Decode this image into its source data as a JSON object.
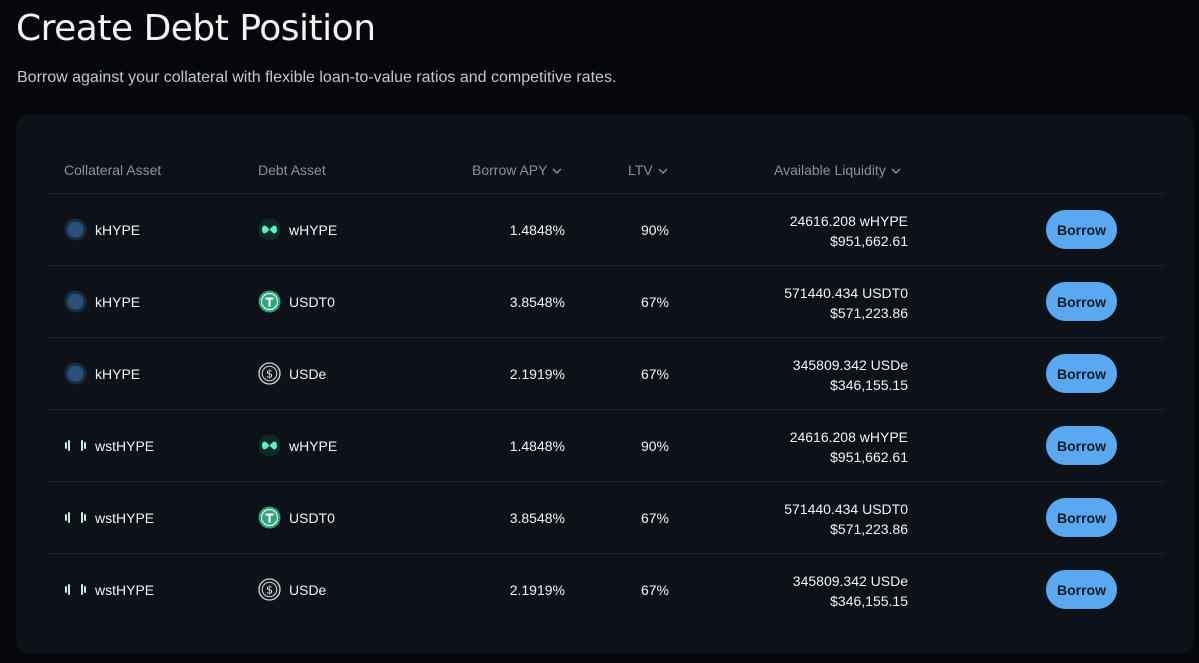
{
  "page": {
    "title": "Create Debt Position",
    "subtitle": "Borrow against your collateral with flexible loan-to-value ratios and competitive rates."
  },
  "table": {
    "headers": {
      "collateral": "Collateral Asset",
      "debt": "Debt Asset",
      "apy": "Borrow APY",
      "ltv": "LTV",
      "liquidity": "Available Liquidity"
    },
    "rows": [
      {
        "collateral": "kHYPE",
        "collateral_icon": "khype-icon",
        "debt": "wHYPE",
        "debt_icon": "whype-icon",
        "apy": "1.4848%",
        "ltv": "90%",
        "liquidity_amount": "24616.208 wHYPE",
        "liquidity_usd": "$951,662.61",
        "action": "Borrow"
      },
      {
        "collateral": "kHYPE",
        "collateral_icon": "khype-icon",
        "debt": "USDT0",
        "debt_icon": "usdt0-icon",
        "apy": "3.8548%",
        "ltv": "67%",
        "liquidity_amount": "571440.434 USDT0",
        "liquidity_usd": "$571,223.86",
        "action": "Borrow"
      },
      {
        "collateral": "kHYPE",
        "collateral_icon": "khype-icon",
        "debt": "USDe",
        "debt_icon": "usde-icon",
        "apy": "2.1919%",
        "ltv": "67%",
        "liquidity_amount": "345809.342 USDe",
        "liquidity_usd": "$346,155.15",
        "action": "Borrow"
      },
      {
        "collateral": "wstHYPE",
        "collateral_icon": "wsthype-icon",
        "debt": "wHYPE",
        "debt_icon": "whype-icon",
        "apy": "1.4848%",
        "ltv": "90%",
        "liquidity_amount": "24616.208 wHYPE",
        "liquidity_usd": "$951,662.61",
        "action": "Borrow"
      },
      {
        "collateral": "wstHYPE",
        "collateral_icon": "wsthype-icon",
        "debt": "USDT0",
        "debt_icon": "usdt0-icon",
        "apy": "3.8548%",
        "ltv": "67%",
        "liquidity_amount": "571440.434 USDT0",
        "liquidity_usd": "$571,223.86",
        "action": "Borrow"
      },
      {
        "collateral": "wstHYPE",
        "collateral_icon": "wsthype-icon",
        "debt": "USDe",
        "debt_icon": "usde-icon",
        "apy": "2.1919%",
        "ltv": "67%",
        "liquidity_amount": "345809.342 USDe",
        "liquidity_usd": "$346,155.15",
        "action": "Borrow"
      }
    ]
  },
  "colors": {
    "background": "#05070b",
    "card": "#0d1118",
    "button": "#5aa9f0",
    "whype_teal": "#5ff2c4",
    "usdt0_green": "#2fa37c"
  }
}
